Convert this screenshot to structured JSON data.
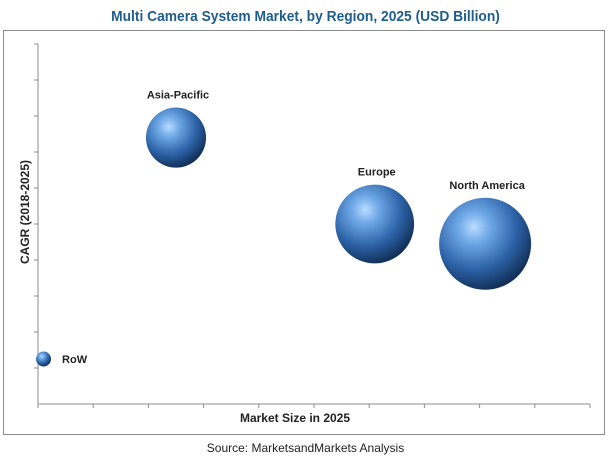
{
  "page": {
    "title": "Multi Camera System Market, by Region, 2025 (USD Billion)",
    "source": "Source: MarketsandMarkets Analysis"
  },
  "chart_data": {
    "type": "bubble",
    "title": "Multi Camera System Market, by Region, 2025 (USD Billion)",
    "xlabel": "Market Size in 2025",
    "ylabel": "CAGR (2018-2025)",
    "x_ticks_count": 10,
    "y_ticks_count": 10,
    "xlim": [
      0,
      10
    ],
    "ylim": [
      0,
      10
    ],
    "grid": false,
    "legend": "none",
    "bubble_color": "#3f7fc7",
    "series": [
      {
        "name": "Asia-Pacific",
        "x": 2.5,
        "y": 7.4,
        "size": 0.32
      },
      {
        "name": "Europe",
        "x": 6.1,
        "y": 5.0,
        "size": 0.55
      },
      {
        "name": "North America",
        "x": 8.1,
        "y": 4.45,
        "size": 0.75
      },
      {
        "name": "RoW",
        "x": 0.1,
        "y": 1.25,
        "size": 0.02
      }
    ]
  }
}
